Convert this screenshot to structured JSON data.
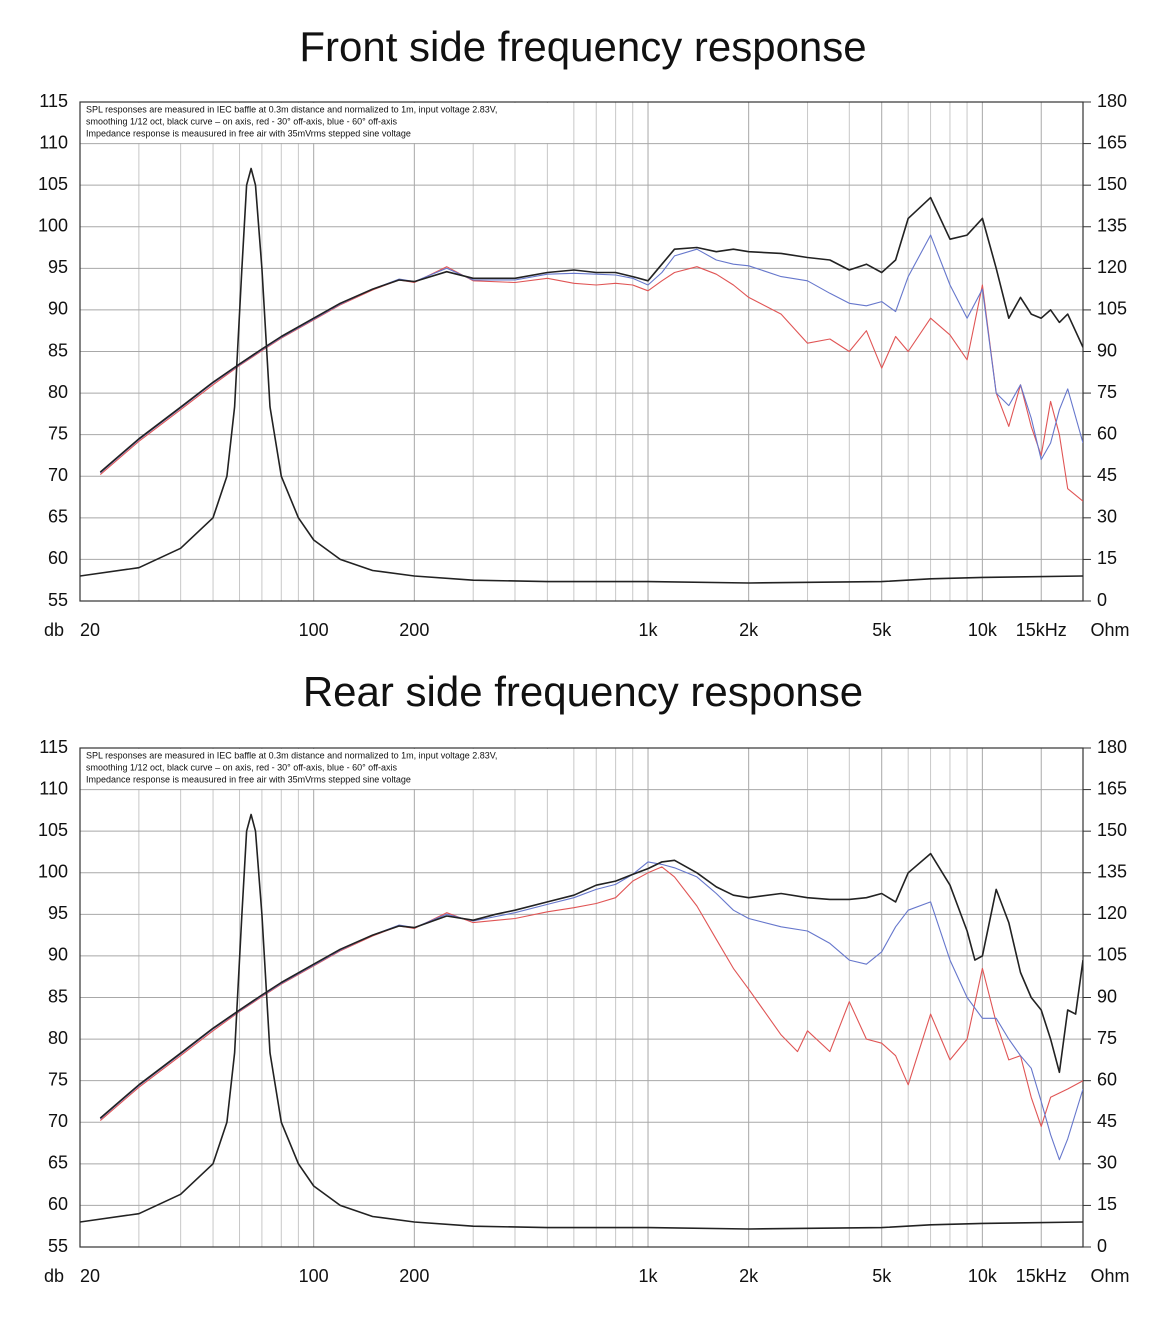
{
  "chart_data": [
    {
      "type": "line",
      "title": "Front side frequency response",
      "annotation": [
        "SPL responses are measured in IEC baffle at  0.3m distance and normalized to 1m, input voltage 2.83V,",
        "smoothing 1/12 oct, black curve – on axis, red - 30° off-axis, blue - 60° off-axis",
        "Impedance response is meausured in free air with 35mVrms stepped sine voltage"
      ],
      "ylabel": "db",
      "y2label": "Ohm",
      "xlog": true,
      "grid": true,
      "xlim": [
        20,
        20000
      ],
      "xticks": [
        20,
        100,
        200,
        {
          "value": 1000,
          "label": "1k"
        },
        {
          "value": 2000,
          "label": "2k"
        },
        {
          "value": 5000,
          "label": "5k"
        },
        {
          "value": 10000,
          "label": "10k"
        },
        {
          "value": 15000,
          "label": "15kHz"
        }
      ],
      "xminor": [
        30,
        40,
        50,
        60,
        70,
        80,
        90,
        300,
        400,
        500,
        600,
        700,
        800,
        900,
        3000,
        4000,
        6000,
        7000,
        8000,
        9000
      ],
      "ylim": [
        55,
        115
      ],
      "yticks": [
        55,
        60,
        65,
        70,
        75,
        80,
        85,
        90,
        95,
        100,
        105,
        110,
        115
      ],
      "y2lim": [
        0,
        180
      ],
      "y2ticks": [
        0,
        15,
        30,
        45,
        60,
        75,
        90,
        105,
        120,
        135,
        150,
        165,
        180
      ],
      "series": [
        {
          "name": "red",
          "color": "#e05555",
          "x": [
            23,
            30,
            40,
            50,
            60,
            70,
            80,
            100,
            120,
            150,
            180,
            200,
            250,
            300,
            400,
            500,
            600,
            700,
            800,
            900,
            1000,
            1100,
            1200,
            1400,
            1600,
            1800,
            2000,
            2500,
            3000,
            3500,
            4000,
            4500,
            5000,
            5500,
            6000,
            7000,
            8000,
            9000,
            10000,
            11000,
            12000,
            13000,
            14000,
            15000,
            16000,
            17000,
            18000,
            20000
          ],
          "values": [
            70.2,
            74.2,
            78,
            81,
            83.3,
            85.1,
            86.6,
            88.8,
            90.6,
            92.4,
            93.6,
            93.3,
            95.2,
            93.5,
            93.3,
            93.8,
            93.2,
            93,
            93.2,
            93,
            92.3,
            93.5,
            94.5,
            95.2,
            94.3,
            93,
            91.5,
            89.5,
            86,
            86.5,
            85,
            87.5,
            83,
            86.8,
            85,
            89,
            87,
            84,
            93,
            80,
            76,
            81,
            76,
            72.5,
            79,
            75,
            68.5,
            67
          ]
        },
        {
          "name": "blue",
          "color": "#6677cc",
          "x": [
            23,
            30,
            40,
            50,
            60,
            70,
            80,
            100,
            120,
            150,
            180,
            200,
            250,
            300,
            400,
            500,
            600,
            700,
            800,
            900,
            1000,
            1100,
            1200,
            1400,
            1600,
            1800,
            2000,
            2500,
            3000,
            3500,
            4000,
            4500,
            5000,
            5500,
            6000,
            7000,
            8000,
            9000,
            10000,
            11000,
            12000,
            13000,
            14000,
            15000,
            16000,
            17000,
            18000,
            20000
          ],
          "values": [
            70.4,
            74.4,
            78.2,
            81.2,
            83.4,
            85.2,
            86.7,
            88.9,
            90.7,
            92.5,
            93.7,
            93.4,
            95,
            93.6,
            93.6,
            94.3,
            94.4,
            94.3,
            94.2,
            93.8,
            93,
            94.5,
            96.5,
            97.3,
            96,
            95.5,
            95.3,
            94,
            93.5,
            92,
            90.8,
            90.5,
            91,
            89.8,
            94,
            99,
            93,
            89,
            92.5,
            80,
            78.5,
            81,
            77,
            72,
            74,
            78,
            80.5,
            74
          ]
        },
        {
          "name": "black",
          "color": "#222222",
          "x": [
            23,
            30,
            40,
            50,
            60,
            70,
            80,
            100,
            120,
            150,
            180,
            200,
            250,
            300,
            400,
            500,
            600,
            700,
            800,
            900,
            1000,
            1100,
            1200,
            1400,
            1600,
            1800,
            2000,
            2500,
            3000,
            3500,
            4000,
            4500,
            5000,
            5500,
            6000,
            7000,
            8000,
            9000,
            10000,
            11000,
            12000,
            13000,
            14000,
            15000,
            16000,
            17000,
            18000,
            20000
          ],
          "values": [
            70.5,
            74.5,
            78.3,
            81.3,
            83.5,
            85.3,
            86.8,
            89,
            90.8,
            92.5,
            93.6,
            93.4,
            94.6,
            93.8,
            93.8,
            94.5,
            94.8,
            94.5,
            94.5,
            94,
            93.5,
            95.5,
            97.3,
            97.5,
            97,
            97.3,
            97,
            96.8,
            96.3,
            96,
            94.8,
            95.5,
            94.5,
            96,
            101,
            103.5,
            98.5,
            99,
            101,
            95,
            89,
            91.5,
            89.5,
            89,
            90,
            88.5,
            89.5,
            85.5
          ]
        },
        {
          "name": "impedance",
          "color": "#222222",
          "axis": "y2",
          "x": [
            20,
            30,
            40,
            50,
            55,
            58,
            61,
            63,
            65,
            67,
            70,
            74,
            80,
            90,
            100,
            120,
            150,
            200,
            300,
            500,
            1000,
            2000,
            5000,
            7000,
            10000,
            20000
          ],
          "values": [
            9,
            12,
            19,
            30,
            45,
            70,
            120,
            150,
            156,
            150,
            120,
            70,
            45,
            30,
            22,
            15,
            11,
            9,
            7.5,
            7,
            7,
            6.5,
            7,
            8,
            8.5,
            9
          ]
        }
      ]
    },
    {
      "type": "line",
      "title": "Rear side frequency response",
      "annotation": [
        "SPL responses are measured in IEC baffle at  0.3m distance and normalized to 1m, input voltage 2.83V,",
        "smoothing 1/12 oct, black curve – on axis, red - 30° off-axis, blue - 60° off-axis",
        "Impedance response is meausured in free air with 35mVrms stepped sine voltage"
      ],
      "ylabel": "db",
      "y2label": "Ohm",
      "xlog": true,
      "grid": true,
      "xlim": [
        20,
        20000
      ],
      "xticks": [
        20,
        100,
        200,
        {
          "value": 1000,
          "label": "1k"
        },
        {
          "value": 2000,
          "label": "2k"
        },
        {
          "value": 5000,
          "label": "5k"
        },
        {
          "value": 10000,
          "label": "10k"
        },
        {
          "value": 15000,
          "label": "15kHz"
        }
      ],
      "xminor": [
        30,
        40,
        50,
        60,
        70,
        80,
        90,
        300,
        400,
        500,
        600,
        700,
        800,
        900,
        3000,
        4000,
        6000,
        7000,
        8000,
        9000
      ],
      "ylim": [
        55,
        115
      ],
      "yticks": [
        55,
        60,
        65,
        70,
        75,
        80,
        85,
        90,
        95,
        100,
        105,
        110,
        115
      ],
      "y2lim": [
        0,
        180
      ],
      "y2ticks": [
        0,
        15,
        30,
        45,
        60,
        75,
        90,
        105,
        120,
        135,
        150,
        165,
        180
      ],
      "series": [
        {
          "name": "red",
          "color": "#e05555",
          "x": [
            23,
            30,
            40,
            50,
            60,
            70,
            80,
            100,
            120,
            150,
            180,
            200,
            250,
            300,
            400,
            500,
            600,
            700,
            800,
            900,
            1000,
            1100,
            1200,
            1400,
            1600,
            1800,
            2000,
            2500,
            2800,
            3000,
            3500,
            4000,
            4500,
            5000,
            5500,
            6000,
            7000,
            8000,
            9000,
            10000,
            11000,
            12000,
            13000,
            14000,
            15000,
            16000,
            18000,
            20000
          ],
          "values": [
            70.2,
            74.2,
            78,
            81,
            83.3,
            85.1,
            86.6,
            88.8,
            90.6,
            92.4,
            93.6,
            93.3,
            95.2,
            94,
            94.5,
            95.3,
            95.8,
            96.3,
            97,
            99,
            100,
            100.7,
            99.5,
            96,
            92,
            88.5,
            86,
            80.5,
            78.5,
            81,
            78.5,
            84.5,
            80,
            79.5,
            78,
            74.5,
            83,
            77.5,
            80,
            88.5,
            82,
            77.5,
            78,
            73,
            69.5,
            73,
            74,
            75
          ]
        },
        {
          "name": "blue",
          "color": "#6677cc",
          "x": [
            23,
            30,
            40,
            50,
            60,
            70,
            80,
            100,
            120,
            150,
            180,
            200,
            250,
            300,
            400,
            500,
            600,
            700,
            800,
            900,
            1000,
            1100,
            1200,
            1400,
            1600,
            1800,
            2000,
            2500,
            3000,
            3500,
            4000,
            4500,
            5000,
            5500,
            6000,
            7000,
            8000,
            9000,
            10000,
            11000,
            12000,
            13000,
            14000,
            15000,
            16000,
            17000,
            18000,
            20000
          ],
          "values": [
            70.4,
            74.4,
            78.2,
            81.2,
            83.4,
            85.2,
            86.7,
            88.9,
            90.7,
            92.5,
            93.7,
            93.4,
            95,
            94.2,
            95.2,
            96.2,
            97,
            98,
            98.6,
            99.8,
            101.3,
            101,
            100.6,
            99.5,
            97.5,
            95.5,
            94.5,
            93.5,
            93,
            91.5,
            89.5,
            89,
            90.5,
            93.5,
            95.5,
            96.5,
            89.5,
            85,
            82.5,
            82.5,
            80,
            78,
            76.5,
            72.5,
            68.5,
            65.5,
            68,
            74
          ]
        },
        {
          "name": "black",
          "color": "#222222",
          "x": [
            23,
            30,
            40,
            50,
            60,
            70,
            80,
            100,
            120,
            150,
            180,
            200,
            250,
            300,
            350,
            400,
            500,
            600,
            700,
            800,
            900,
            1000,
            1100,
            1200,
            1400,
            1600,
            1800,
            2000,
            2500,
            3000,
            3500,
            4000,
            4500,
            5000,
            5500,
            6000,
            7000,
            8000,
            9000,
            9500,
            10000,
            11000,
            12000,
            13000,
            14000,
            15000,
            16000,
            17000,
            18000,
            19000,
            20000
          ],
          "values": [
            70.5,
            74.5,
            78.3,
            81.3,
            83.5,
            85.3,
            86.8,
            89,
            90.8,
            92.5,
            93.6,
            93.4,
            94.8,
            94.3,
            95,
            95.5,
            96.5,
            97.3,
            98.5,
            99,
            99.8,
            100.5,
            101.3,
            101.5,
            100,
            98.3,
            97.3,
            97,
            97.5,
            97,
            96.8,
            96.8,
            97,
            97.5,
            96.5,
            100,
            102.3,
            98.5,
            93,
            89.5,
            90,
            98,
            94,
            88,
            85,
            83.5,
            80,
            76,
            83.5,
            83,
            89.5
          ]
        },
        {
          "name": "impedance",
          "color": "#222222",
          "axis": "y2",
          "x": [
            20,
            30,
            40,
            50,
            55,
            58,
            61,
            63,
            65,
            67,
            70,
            74,
            80,
            90,
            100,
            120,
            150,
            200,
            300,
            500,
            1000,
            2000,
            5000,
            7000,
            10000,
            20000
          ],
          "values": [
            9,
            12,
            19,
            30,
            45,
            70,
            120,
            150,
            156,
            150,
            120,
            70,
            45,
            30,
            22,
            15,
            11,
            9,
            7.5,
            7,
            7,
            6.5,
            7,
            8,
            8.5,
            9
          ]
        }
      ]
    }
  ]
}
